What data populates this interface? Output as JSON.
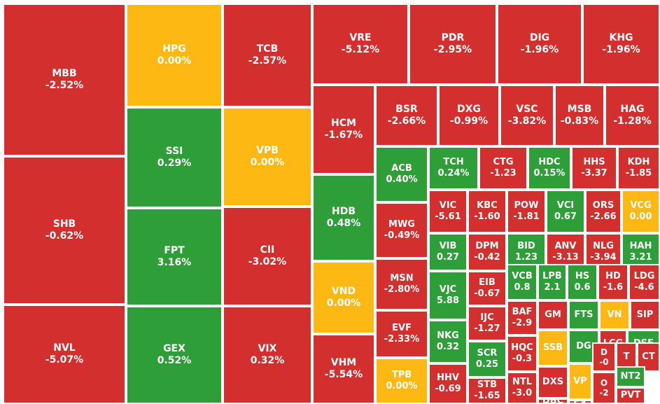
{
  "colors": {
    "down": "#D32F2F",
    "up": "#2E9E38",
    "flat": "#FDB813"
  },
  "chart_data": {
    "type": "treemap",
    "title": "",
    "tiles": [
      {
        "symbol": "MBB",
        "change_label": "-2.52%",
        "change": -2.52
      },
      {
        "symbol": "SHB",
        "change_label": "-0.62%",
        "change": -0.62
      },
      {
        "symbol": "NVL",
        "change_label": "-5.07%",
        "change": -5.07
      },
      {
        "symbol": "HPG",
        "change_label": "0.00%",
        "change": 0.0
      },
      {
        "symbol": "SSI",
        "change_label": "0.29%",
        "change": 0.29
      },
      {
        "symbol": "FPT",
        "change_label": "3.16%",
        "change": 3.16
      },
      {
        "symbol": "GEX",
        "change_label": "0.52%",
        "change": 0.52
      },
      {
        "symbol": "TCB",
        "change_label": "-2.57%",
        "change": -2.57
      },
      {
        "symbol": "VPB",
        "change_label": "0.00%",
        "change": 0.0
      },
      {
        "symbol": "CII",
        "change_label": "-3.02%",
        "change": -3.02
      },
      {
        "symbol": "VIX",
        "change_label": "0.32%",
        "change": 0.32
      },
      {
        "symbol": "VRE",
        "change_label": "-5.12%",
        "change": -5.12
      },
      {
        "symbol": "PDR",
        "change_label": "-2.95%",
        "change": -2.95
      },
      {
        "symbol": "DIG",
        "change_label": "-1.96%",
        "change": -1.96
      },
      {
        "symbol": "KHG",
        "change_label": "-1.96%",
        "change": -1.96
      },
      {
        "symbol": "HCM",
        "change_label": "-1.67%",
        "change": -1.67
      },
      {
        "symbol": "HDB",
        "change_label": "0.48%",
        "change": 0.48
      },
      {
        "symbol": "VND",
        "change_label": "0.00%",
        "change": 0.0
      },
      {
        "symbol": "VHM",
        "change_label": "-5.54%",
        "change": -5.54
      },
      {
        "symbol": "BSR",
        "change_label": "-2.66%",
        "change": -2.66
      },
      {
        "symbol": "DXG",
        "change_label": "-0.99%",
        "change": -0.99
      },
      {
        "symbol": "VSC",
        "change_label": "-3.82%",
        "change": -3.82
      },
      {
        "symbol": "MSB",
        "change_label": "-0.83%",
        "change": -0.83
      },
      {
        "symbol": "HAG",
        "change_label": "-1.28%",
        "change": -1.28
      },
      {
        "symbol": "ACB",
        "change_label": "0.40%",
        "change": 0.4
      },
      {
        "symbol": "MWG",
        "change_label": "-0.49%",
        "change": -0.49
      },
      {
        "symbol": "MSN",
        "change_label": "-2.80%",
        "change": -2.8
      },
      {
        "symbol": "EVF",
        "change_label": "-2.33%",
        "change": -2.33
      },
      {
        "symbol": "TPB",
        "change_label": "0.00%",
        "change": 0.0
      },
      {
        "symbol": "TCH",
        "change_label": "0.24%",
        "change": 0.24
      },
      {
        "symbol": "CTG",
        "change_label": "-1.23",
        "change": -1.23
      },
      {
        "symbol": "HDC",
        "change_label": "0.15%",
        "change": 0.15
      },
      {
        "symbol": "HHS",
        "change_label": "-3.37",
        "change": -3.37
      },
      {
        "symbol": "KDH",
        "change_label": "-1.85",
        "change": -1.85
      },
      {
        "symbol": "VIC",
        "change_label": "-5.61",
        "change": -5.61
      },
      {
        "symbol": "KBC",
        "change_label": "-1.60",
        "change": -1.6
      },
      {
        "symbol": "POW",
        "change_label": "-1.81",
        "change": -1.81
      },
      {
        "symbol": "VCI",
        "change_label": "0.67",
        "change": 0.67
      },
      {
        "symbol": "ORS",
        "change_label": "-2.66",
        "change": -2.66
      },
      {
        "symbol": "VCG",
        "change_label": "0.00",
        "change": 0.0
      },
      {
        "symbol": "VIB",
        "change_label": "0.27",
        "change": 0.27
      },
      {
        "symbol": "DPM",
        "change_label": "-0.42",
        "change": -0.42
      },
      {
        "symbol": "BID",
        "change_label": "1.23",
        "change": 1.23
      },
      {
        "symbol": "ANV",
        "change_label": "-3.13",
        "change": -3.13
      },
      {
        "symbol": "NLG",
        "change_label": "-3.94",
        "change": -3.94
      },
      {
        "symbol": "HAH",
        "change_label": "3.21",
        "change": 3.21
      },
      {
        "symbol": "VJC",
        "change_label": "5.88",
        "change": 5.88
      },
      {
        "symbol": "EIB",
        "change_label": "-0.67",
        "change": -0.67
      },
      {
        "symbol": "VCB",
        "change_label": "0.8",
        "change": 0.8
      },
      {
        "symbol": "LPB",
        "change_label": "2.1",
        "change": 2.1
      },
      {
        "symbol": "HS",
        "change_label": "0.6",
        "change": 0.6
      },
      {
        "symbol": "HD",
        "change_label": "-1.6",
        "change": -1.6
      },
      {
        "symbol": "LDG",
        "change_label": "-4.6",
        "change": -4.6
      },
      {
        "symbol": "NKG",
        "change_label": "0.32",
        "change": 0.32
      },
      {
        "symbol": "IJC",
        "change_label": "-1.27",
        "change": -1.27
      },
      {
        "symbol": "BAF",
        "change_label": "-2.9",
        "change": -2.9
      },
      {
        "symbol": "GM",
        "change_label": "",
        "change": null
      },
      {
        "symbol": "FTS",
        "change_label": "",
        "change": null
      },
      {
        "symbol": "VN",
        "change_label": "",
        "change": 0.0
      },
      {
        "symbol": "SIP",
        "change_label": "",
        "change": null
      },
      {
        "symbol": "SSB",
        "change_label": "",
        "change": 0.0
      },
      {
        "symbol": "DG",
        "change_label": "",
        "change": null
      },
      {
        "symbol": "LCG",
        "change_label": "",
        "change": null
      },
      {
        "symbol": "DSE",
        "change_label": "",
        "change": null
      },
      {
        "symbol": "SCR",
        "change_label": "0.25",
        "change": 0.25
      },
      {
        "symbol": "HQC",
        "change_label": "-0.3",
        "change": -0.3
      },
      {
        "symbol": "DXS",
        "change_label": "",
        "change": null
      },
      {
        "symbol": "VP",
        "change_label": "",
        "change": 0.0
      },
      {
        "symbol": "D",
        "change_label": "-0",
        "change": -0.0
      },
      {
        "symbol": "T",
        "change_label": "",
        "change": null
      },
      {
        "symbol": "CT",
        "change_label": "",
        "change": null
      },
      {
        "symbol": "O",
        "change_label": "-2",
        "change": -2
      },
      {
        "symbol": "NT2",
        "change_label": "",
        "change": null
      },
      {
        "symbol": "HHV",
        "change_label": "-0.69",
        "change": -0.69
      },
      {
        "symbol": "STB",
        "change_label": "-1.65",
        "change": -1.65
      },
      {
        "symbol": "NTL",
        "change_label": "-3.0",
        "change": -3.0
      },
      {
        "symbol": "DBC",
        "change_label": "",
        "change": null
      },
      {
        "symbol": "PV",
        "change_label": "",
        "change": null
      },
      {
        "symbol": "PVT",
        "change_label": "",
        "change": null
      }
    ]
  }
}
